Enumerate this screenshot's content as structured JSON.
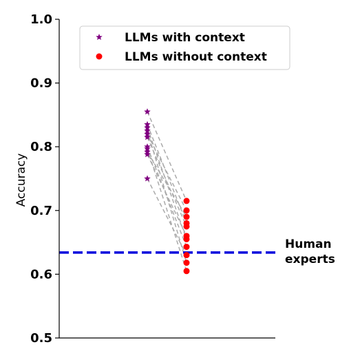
{
  "chart_data": {
    "type": "scatter",
    "ylabel": "Accuracy",
    "xlabel": "",
    "ylim": [
      0.5,
      1.0
    ],
    "yticks": [
      "0.5",
      "0.6",
      "0.7",
      "0.8",
      "0.9",
      "1.0"
    ],
    "grid": false,
    "legend_position": "top-center",
    "series": [
      {
        "name": "LLMs with context",
        "marker": "star",
        "color": "#800080",
        "group": "left",
        "values": [
          0.855,
          0.835,
          0.83,
          0.825,
          0.82,
          0.815,
          0.8,
          0.797,
          0.792,
          0.788,
          0.75
        ]
      },
      {
        "name": "LLMs without context",
        "marker": "circle",
        "color": "#ff0000",
        "group": "right",
        "values": [
          0.715,
          0.7,
          0.69,
          0.68,
          0.675,
          0.66,
          0.655,
          0.643,
          0.63,
          0.618,
          0.605
        ]
      }
    ],
    "reference_line": {
      "value": 0.634,
      "label_line1": "Human",
      "label_line2": "experts",
      "color": "#0000dd",
      "style": "dashed"
    },
    "connector_color": "#aaaaaa"
  }
}
